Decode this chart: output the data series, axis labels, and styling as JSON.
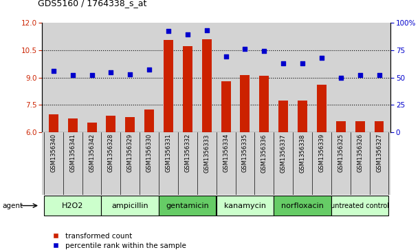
{
  "title": "GDS5160 / 1764338_s_at",
  "samples": [
    "GSM1356340",
    "GSM1356341",
    "GSM1356342",
    "GSM1356328",
    "GSM1356329",
    "GSM1356330",
    "GSM1356331",
    "GSM1356332",
    "GSM1356333",
    "GSM1356334",
    "GSM1356335",
    "GSM1356336",
    "GSM1356337",
    "GSM1356338",
    "GSM1356339",
    "GSM1356325",
    "GSM1356326",
    "GSM1356327"
  ],
  "transformed_count": [
    7.0,
    6.75,
    6.55,
    6.9,
    6.85,
    7.25,
    11.05,
    10.7,
    11.1,
    8.8,
    9.15,
    9.1,
    7.75,
    7.75,
    8.6,
    6.6,
    6.6,
    6.6
  ],
  "percentile_rank": [
    56,
    52,
    52,
    55,
    53,
    57,
    92,
    89,
    93,
    69,
    76,
    74,
    63,
    63,
    68,
    50,
    52,
    52
  ],
  "groups": [
    {
      "name": "H2O2",
      "start": 0,
      "end": 3,
      "color": "#ccffcc"
    },
    {
      "name": "ampicillin",
      "start": 3,
      "end": 6,
      "color": "#ccffcc"
    },
    {
      "name": "gentamicin",
      "start": 6,
      "end": 9,
      "color": "#66cc66"
    },
    {
      "name": "kanamycin",
      "start": 9,
      "end": 12,
      "color": "#ccffcc"
    },
    {
      "name": "norfloxacin",
      "start": 12,
      "end": 15,
      "color": "#66cc66"
    },
    {
      "name": "untreated control",
      "start": 15,
      "end": 18,
      "color": "#ccffcc"
    }
  ],
  "bar_color": "#cc2200",
  "dot_color": "#0000cc",
  "ylim_left": [
    6,
    12
  ],
  "ylim_right": [
    0,
    100
  ],
  "yticks_left": [
    6,
    7.5,
    9,
    10.5,
    12
  ],
  "yticks_right": [
    0,
    25,
    50,
    75,
    100
  ],
  "hlines": [
    7.5,
    9,
    10.5
  ],
  "bar_width": 0.5,
  "plot_bg": "#d3d3d3",
  "agent_label": "agent",
  "legend_red": "transformed count",
  "legend_blue": "percentile rank within the sample"
}
